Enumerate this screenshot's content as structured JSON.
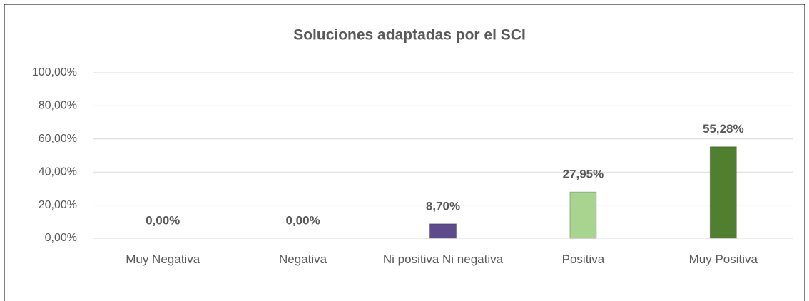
{
  "chart_data": {
    "type": "bar",
    "title": "Soluciones adaptadas por el SCI",
    "categories": [
      "Muy Negativa",
      "Negativa",
      "Ni positiva Ni negativa",
      "Positiva",
      "Muy Positiva"
    ],
    "values": [
      0,
      0,
      8.7,
      27.95,
      55.28
    ],
    "value_labels": [
      "0,00%",
      "0,00%",
      "8,70%",
      "27,95%",
      "55,28%"
    ],
    "colors": [
      null,
      null,
      "#5e4b8a",
      "#a9d48f",
      "#4f7f2f"
    ],
    "ylim": [
      0,
      100
    ],
    "yticks": [
      {
        "value": 0,
        "label": "0,00%"
      },
      {
        "value": 20,
        "label": "20,00%"
      },
      {
        "value": 40,
        "label": "40,00%"
      },
      {
        "value": 60,
        "label": "60,00%"
      },
      {
        "value": 80,
        "label": "80,00%"
      },
      {
        "value": 100,
        "label": "100,00%"
      }
    ],
    "grid": true
  }
}
